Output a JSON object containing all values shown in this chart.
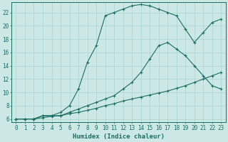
{
  "xlabel": "Humidex (Indice chaleur)",
  "bg_color": "#cce8e4",
  "grid_color": "#aad4cf",
  "line_color": "#1a6e65",
  "xlim": [
    -0.5,
    23.5
  ],
  "ylim": [
    5.5,
    23.5
  ],
  "xticks": [
    0,
    1,
    2,
    3,
    4,
    5,
    6,
    7,
    8,
    9,
    10,
    11,
    12,
    13,
    14,
    15,
    16,
    17,
    18,
    19,
    20,
    21,
    22,
    23
  ],
  "yticks": [
    6,
    8,
    10,
    12,
    14,
    16,
    18,
    20,
    22
  ],
  "line1_x": [
    0,
    1,
    2,
    3,
    4,
    5,
    6,
    7,
    8,
    9,
    10,
    11,
    12,
    13,
    14,
    15,
    16,
    17,
    18,
    19,
    20,
    21,
    22,
    23
  ],
  "line1_y": [
    6.0,
    6.0,
    6.0,
    6.2,
    6.4,
    6.5,
    6.8,
    7.0,
    7.3,
    7.6,
    8.0,
    8.3,
    8.7,
    9.0,
    9.3,
    9.6,
    9.9,
    10.2,
    10.6,
    11.0,
    11.5,
    12.0,
    12.5,
    13.0
  ],
  "line2_x": [
    0,
    1,
    2,
    3,
    4,
    5,
    6,
    7,
    8,
    9,
    10,
    11,
    12,
    13,
    14,
    15,
    16,
    17,
    18,
    19,
    20,
    21,
    22,
    23
  ],
  "line2_y": [
    6.0,
    6.0,
    6.0,
    6.5,
    6.5,
    7.0,
    8.0,
    10.5,
    14.5,
    17.0,
    21.5,
    22.0,
    22.5,
    23.0,
    23.2,
    23.0,
    22.5,
    22.0,
    21.5,
    19.5,
    17.5,
    19.0,
    20.5,
    21.0
  ],
  "line3_x": [
    0,
    1,
    2,
    3,
    4,
    5,
    6,
    7,
    8,
    9,
    10,
    11,
    12,
    13,
    14,
    15,
    16,
    17,
    18,
    19,
    20,
    21,
    22,
    23
  ],
  "line3_y": [
    6.0,
    6.0,
    6.0,
    6.5,
    6.5,
    6.5,
    7.0,
    7.5,
    8.0,
    8.5,
    9.0,
    9.5,
    10.5,
    11.5,
    13.0,
    15.0,
    17.0,
    17.5,
    16.5,
    15.5,
    14.0,
    12.5,
    11.0,
    10.5
  ]
}
